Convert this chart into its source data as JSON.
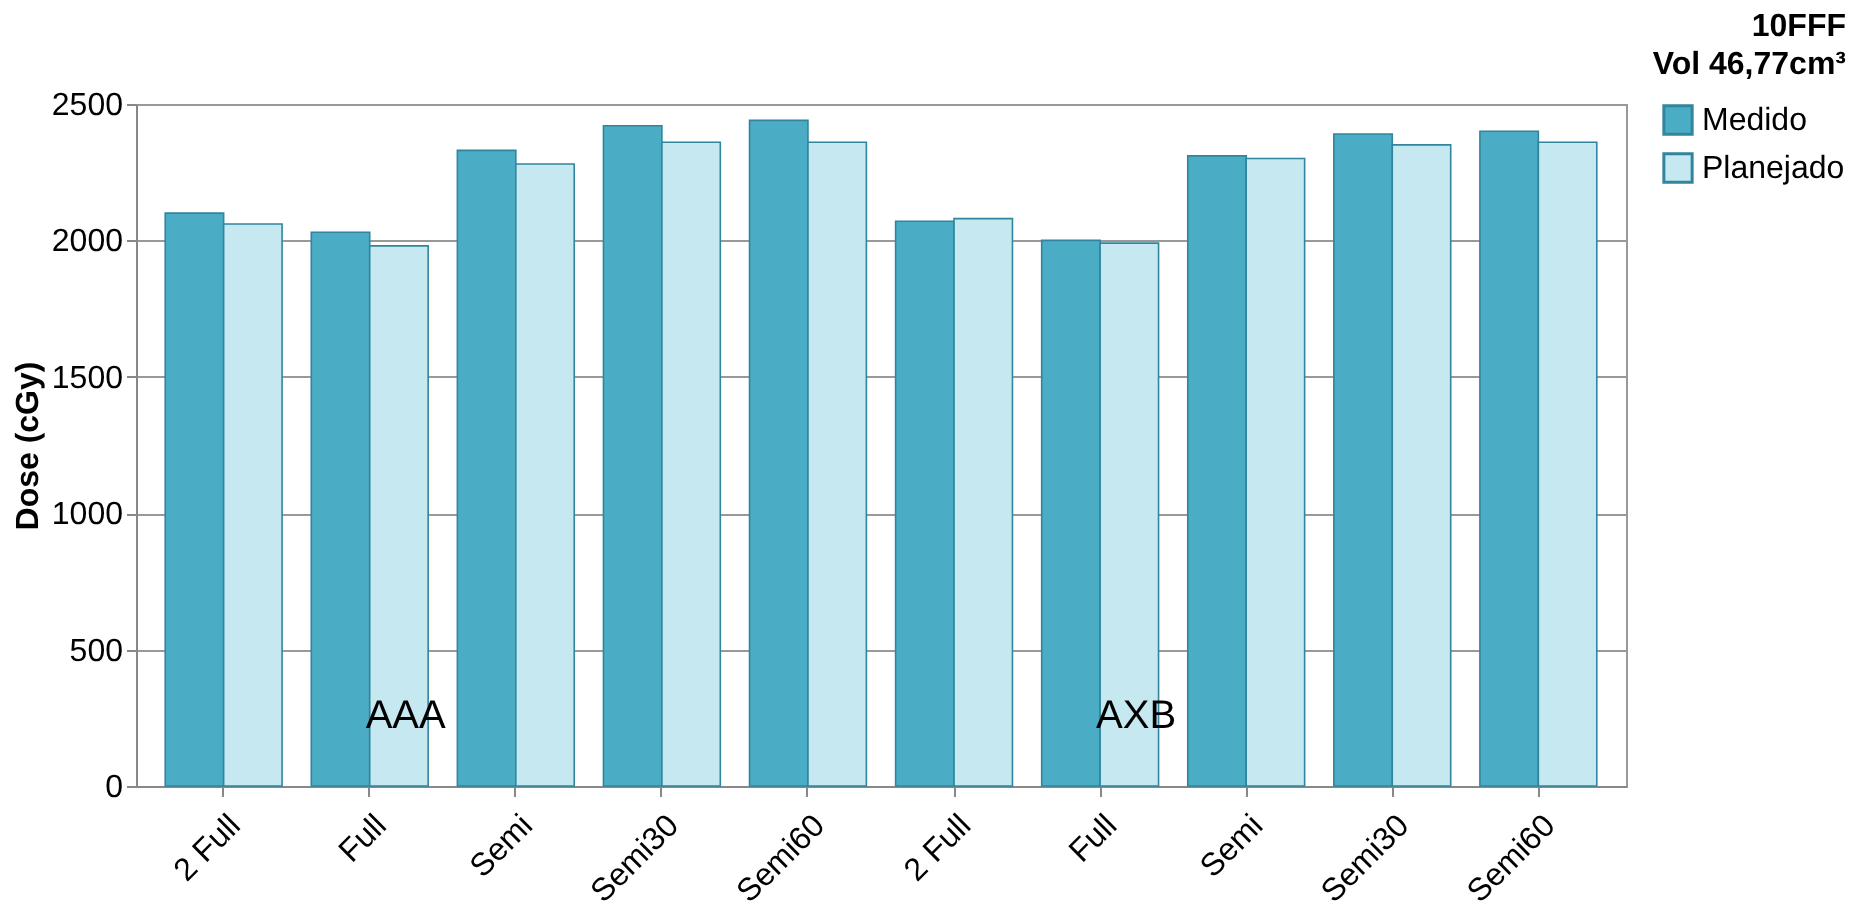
{
  "chart_data": {
    "type": "bar",
    "title": "10FFF",
    "subtitle": "Vol 46,77cm³",
    "ylabel": "Dose (cGy)",
    "categories": [
      "2 Full",
      "Full",
      "Semi",
      "Semi30",
      "Semi60",
      "2 Full",
      "Full",
      "Semi",
      "Semi30",
      "Semi60"
    ],
    "series": [
      {
        "name": "Medido",
        "color": "#4bacc6",
        "values": [
          2100,
          2030,
          2330,
          2420,
          2440,
          2070,
          2000,
          2310,
          2390,
          2400
        ]
      },
      {
        "name": "Planejado",
        "color": "#c6e8f1",
        "values": [
          2060,
          1980,
          2280,
          2360,
          2360,
          2080,
          1990,
          2300,
          2350,
          2360
        ]
      }
    ],
    "ylim": [
      0,
      2500
    ],
    "yticks": [
      0,
      500,
      1000,
      1500,
      2000,
      2500
    ],
    "grid": "y",
    "legend": "right",
    "annotations": [
      "AAA",
      "AXB"
    ]
  }
}
